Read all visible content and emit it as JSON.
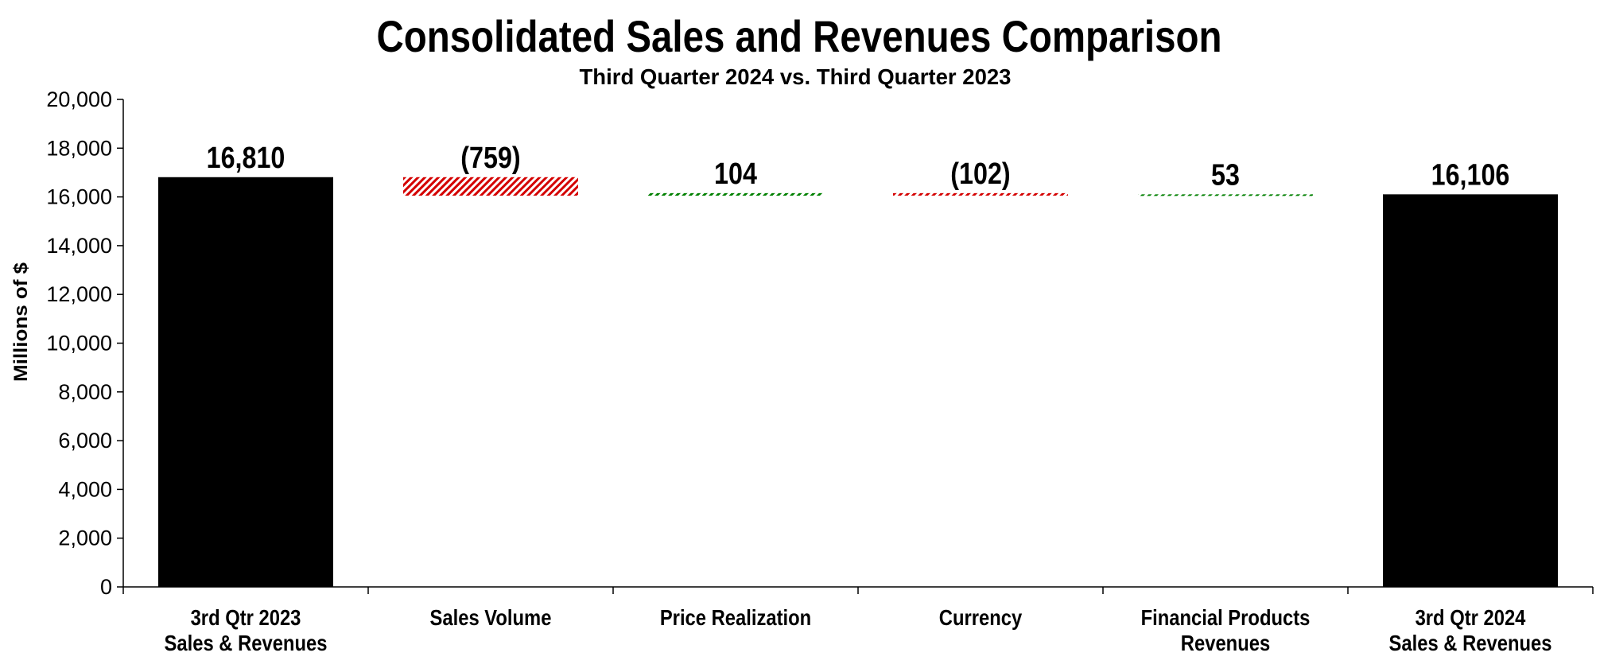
{
  "chart_data": {
    "type": "bar",
    "subtype": "waterfall",
    "title": "Consolidated Sales and Revenues Comparison",
    "subtitle": "Third Quarter 2024 vs. Third Quarter 2023",
    "ylabel": "Millions of $",
    "xlabel": "",
    "ylim": [
      0,
      20000
    ],
    "yticks": [
      "0",
      "2,000",
      "4,000",
      "6,000",
      "8,000",
      "10,000",
      "12,000",
      "14,000",
      "16,000",
      "18,000",
      "20,000"
    ],
    "grid": false,
    "legend": "none",
    "categories": [
      [
        "3rd Qtr 2023",
        "Sales & Revenues"
      ],
      [
        "Sales Volume"
      ],
      [
        "Price Realization"
      ],
      [
        "Currency"
      ],
      [
        "Financial Products",
        "Revenues"
      ],
      [
        "3rd Qtr 2024",
        "Sales & Revenues"
      ]
    ],
    "values": [
      16810,
      -759,
      104,
      -102,
      53,
      16106
    ],
    "kinds": [
      "total",
      "delta",
      "delta",
      "delta",
      "delta",
      "total"
    ],
    "data_labels": [
      "16,810",
      "(759)",
      "104",
      "(102)",
      "53",
      "16,106"
    ],
    "colors": {
      "total": "#000000",
      "increase": "#008000",
      "decrease": "#d40000"
    }
  }
}
